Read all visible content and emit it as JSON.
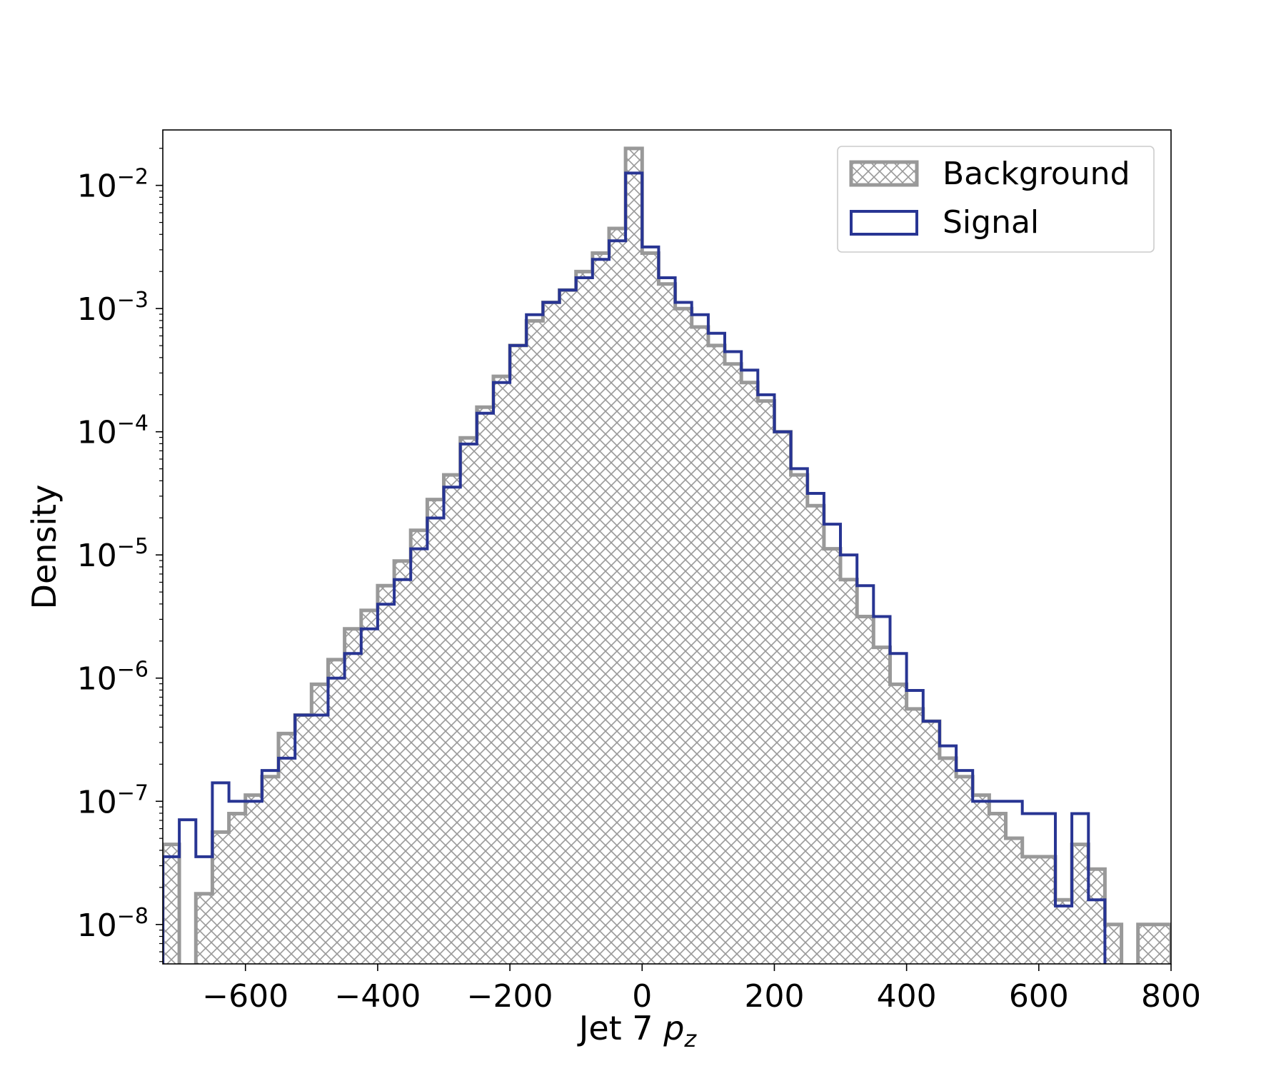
{
  "chart_data": {
    "type": "histogram",
    "xlabel": "Jet 7",
    "xlabel_math": "p",
    "xlabel_sub": "z",
    "ylabel": "Density",
    "xlim": [
      -725,
      800
    ],
    "ylim_log10": [
      -8.32,
      -1.55
    ],
    "y_scale": "log",
    "grid": false,
    "legend_placement": "top-right",
    "xticks": [
      -600,
      -400,
      -200,
      0,
      200,
      400,
      600,
      800
    ],
    "xtick_labels": [
      "−600",
      "−400",
      "−200",
      "0",
      "200",
      "400",
      "600",
      "800"
    ],
    "yticks_exp": [
      -8,
      -7,
      -6,
      -5,
      -4,
      -3,
      -2
    ],
    "ytick_base": "10",
    "ytick_exp_labels": [
      "−8",
      "−7",
      "−6",
      "−5",
      "−4",
      "−3",
      "−2"
    ],
    "bin_edges": [
      -725,
      -700,
      -675,
      -650,
      -625,
      -600,
      -575,
      -550,
      -525,
      -500,
      -475,
      -450,
      -425,
      -400,
      -375,
      -350,
      -325,
      -300,
      -275,
      -250,
      -225,
      -200,
      -175,
      -150,
      -125,
      -100,
      -75,
      -50,
      -25,
      0,
      25,
      50,
      75,
      100,
      125,
      150,
      175,
      200,
      225,
      250,
      275,
      300,
      325,
      350,
      375,
      400,
      425,
      450,
      475,
      500,
      525,
      550,
      575,
      600,
      625,
      650,
      675,
      700,
      725,
      750,
      775,
      800
    ],
    "series": [
      {
        "name": "Background",
        "color": "#999999",
        "style": "hatched",
        "log10_values": [
          -7.35,
          null,
          -7.75,
          -7.25,
          -7.1,
          -6.95,
          -6.8,
          -6.45,
          -6.3,
          -6.05,
          -5.85,
          -5.6,
          -5.45,
          -5.25,
          -5.05,
          -4.8,
          -4.55,
          -4.35,
          -4.05,
          -3.8,
          -3.55,
          -3.3,
          -3.1,
          -2.95,
          -2.85,
          -2.7,
          -2.55,
          -2.35,
          -1.7,
          -2.55,
          -2.8,
          -3.0,
          -3.15,
          -3.3,
          -3.45,
          -3.6,
          -3.75,
          -4.0,
          -4.35,
          -4.6,
          -4.95,
          -5.2,
          -5.5,
          -5.75,
          -6.05,
          -6.25,
          -6.35,
          -6.65,
          -6.8,
          -6.95,
          -7.1,
          -7.3,
          -7.45,
          -7.45,
          -7.8,
          -7.35,
          -7.55,
          -8.0,
          null,
          -8.0,
          -8.0
        ]
      },
      {
        "name": "Signal",
        "color": "#283593",
        "style": "step",
        "log10_values": [
          -7.45,
          -7.15,
          -7.45,
          -6.85,
          -7.0,
          -7.0,
          -6.75,
          -6.65,
          -6.3,
          -6.3,
          -6.0,
          -5.8,
          -5.6,
          -5.4,
          -5.2,
          -4.95,
          -4.7,
          -4.45,
          -4.1,
          -3.85,
          -3.6,
          -3.3,
          -3.05,
          -2.95,
          -2.85,
          -2.75,
          -2.6,
          -2.45,
          -1.9,
          -2.5,
          -2.75,
          -2.95,
          -3.05,
          -3.2,
          -3.35,
          -3.5,
          -3.7,
          -4.0,
          -4.3,
          -4.5,
          -4.75,
          -5.0,
          -5.25,
          -5.5,
          -5.8,
          -6.1,
          -6.35,
          -6.55,
          -6.75,
          -7.0,
          -7.0,
          -7.0,
          -7.1,
          -7.1,
          -7.85,
          -7.1,
          -7.8,
          null,
          null,
          null,
          null
        ]
      }
    ]
  },
  "legend": {
    "items": [
      {
        "label": "Background"
      },
      {
        "label": "Signal"
      }
    ]
  }
}
